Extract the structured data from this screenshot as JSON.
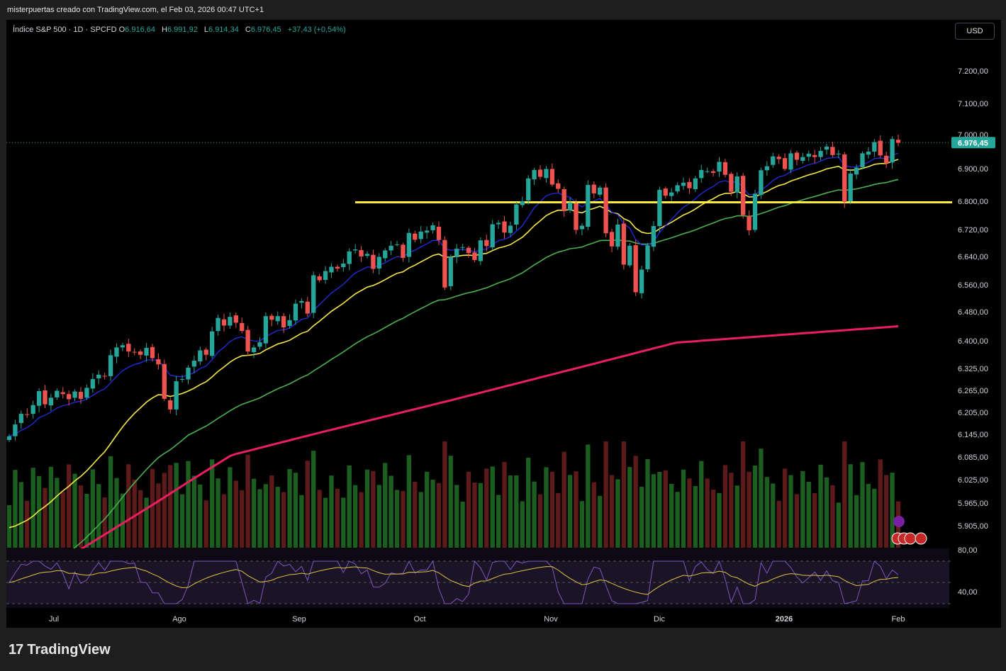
{
  "header": {
    "title": "misterpuertas creado con TradingView.com, el Feb 03, 2026 00:47 UTC+1"
  },
  "legend": {
    "symbol": "Índice S&P 500 · 1D · SPCFD",
    "o_label": "O",
    "o_value": "6.916,64",
    "h_label": "H",
    "h_value": "6.991,92",
    "l_label": "L",
    "l_value": "6.914,34",
    "c_label": "C",
    "c_value": "6.976,45",
    "change": "+37,43 (+0,54%)"
  },
  "currency_button": "USD",
  "last_price_label": "6.976,45",
  "footer": {
    "logo_mark": "17",
    "brand": "TradingView"
  },
  "colors": {
    "up": "#26a69a",
    "down": "#ef5350",
    "ema_fast": "#2a2ef0",
    "ema_mid": "#f7e84a",
    "ema_slow": "#4caf50",
    "ema_long": "#e91e63",
    "support_line": "#ffeb3b",
    "vol_up": "#1b5e20",
    "vol_down": "#5d1a1a",
    "rsi": "#7e57c2",
    "rsi_ma": "#e0c341"
  },
  "chart_data": {
    "type": "candlestick",
    "title": "Índice S&P 500 · 1D · SPCFD",
    "currency": "USD",
    "x_ticks": [
      "Jul",
      "Ago",
      "Sep",
      "Oct",
      "Nov",
      "Dic",
      "2026",
      "Feb"
    ],
    "y_ticks": [
      "7.200,00",
      "7.100,00",
      "7.000,00",
      "6.900,00",
      "6.800,00",
      "6.720,00",
      "6.640,00",
      "6.560,00",
      "6.480,00",
      "6.400,00",
      "6.325,00",
      "6.265,00",
      "6.205,00",
      "6.145,00",
      "6.085,00",
      "6.025,00",
      "5.965,00",
      "5.905,00"
    ],
    "rsi_ticks": [
      "80,00",
      "40,00"
    ],
    "last_close": 6976.45,
    "support_level": 6797,
    "first_date": "2025-06-26",
    "closes": [
      6140,
      6172,
      6201,
      6198,
      6225,
      6263,
      6227,
      6245,
      6264,
      6255,
      6241,
      6262,
      6242,
      6272,
      6296,
      6308,
      6303,
      6361,
      6382,
      6388,
      6371,
      6368,
      6362,
      6381,
      6353,
      6336,
      6242,
      6213,
      6290,
      6296,
      6327,
      6346,
      6374,
      6362,
      6426,
      6463,
      6442,
      6466,
      6450,
      6427,
      6371,
      6382,
      6396,
      6468,
      6458,
      6468,
      6437,
      6457,
      6504,
      6512,
      6475,
      6587,
      6573,
      6599,
      6611,
      6606,
      6620,
      6655,
      6661,
      6640,
      6648,
      6605,
      6639,
      6658,
      6672,
      6676,
      6636,
      6710,
      6690,
      6714,
      6717,
      6732,
      6689,
      6552,
      6639,
      6663,
      6668,
      6650,
      6630,
      6688,
      6671,
      6735,
      6739,
      6711,
      6731,
      6791,
      6800,
      6870,
      6896,
      6875,
      6899,
      6851,
      6838,
      6772,
      6796,
      6719,
      6731,
      6850,
      6824,
      6842,
      6709,
      6670,
      6734,
      6617,
      6672,
      6538,
      6603,
      6673,
      6730,
      6835,
      6817,
      6827,
      6849,
      6857,
      6840,
      6870,
      6896,
      6892,
      6887,
      6920,
      6881,
      6829,
      6876,
      6761,
      6718,
      6823,
      6895,
      6907,
      6936,
      6928,
      6899,
      6945,
      6926,
      6934,
      6944,
      6934,
      6952,
      6965,
      6940,
      6944,
      6798,
      6885,
      6903,
      6945,
      6950,
      6978,
      6939,
      6915,
      6987,
      6976
    ],
    "ema_10": "computed from closes",
    "ema_20": "computed from closes",
    "ema_50": "computed from closes",
    "ema_200": [
      5725,
      6090,
      6240,
      6395,
      6440
    ],
    "volume_relative": "shown as bars under price",
    "rsi_range": [
      30,
      80
    ]
  }
}
